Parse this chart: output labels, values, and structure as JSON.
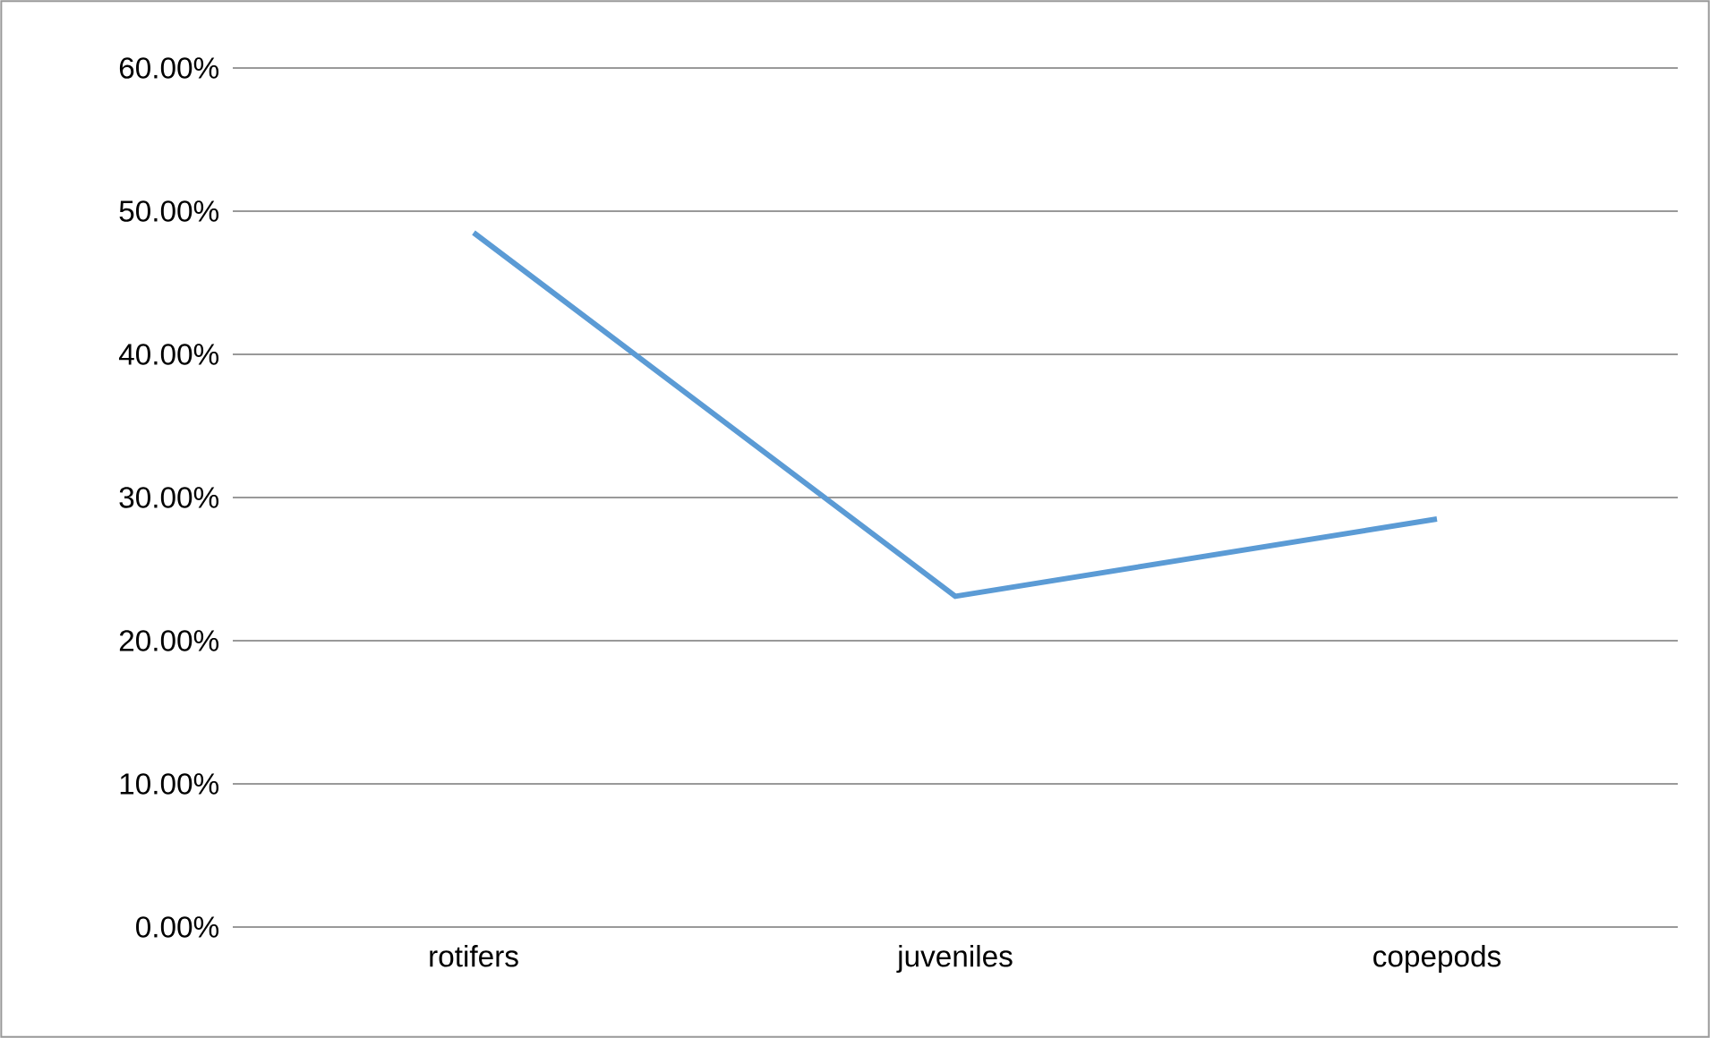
{
  "chart_data": {
    "type": "line",
    "categories": [
      "rotifers",
      "juveniles",
      "copepods"
    ],
    "series": [
      {
        "color": "#5b9bd5",
        "values": [
          48.5,
          23.1,
          28.5
        ]
      }
    ],
    "ylim": [
      0,
      60
    ],
    "yticks": [
      {
        "value": 0,
        "label": "0.00%"
      },
      {
        "value": 10,
        "label": "10.00%"
      },
      {
        "value": 20,
        "label": "20.00%"
      },
      {
        "value": 30,
        "label": "30.00%"
      },
      {
        "value": 40,
        "label": "40.00%"
      },
      {
        "value": 50,
        "label": "50.00%"
      },
      {
        "value": 60,
        "label": "60.00%"
      }
    ],
    "grid": "y",
    "marker": "none",
    "line_style": "solid"
  }
}
